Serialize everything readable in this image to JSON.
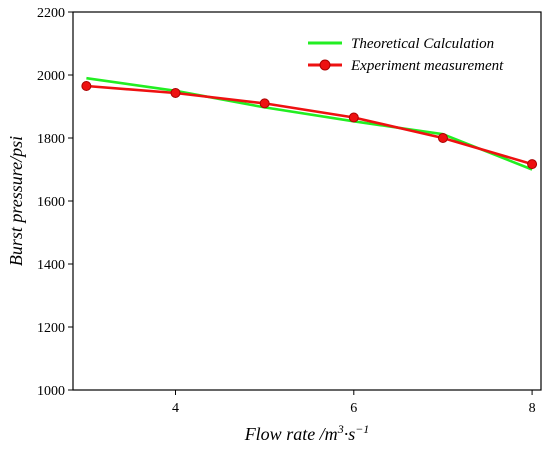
{
  "chart_data": {
    "type": "line",
    "xlabel_main": "Flow rate /m",
    "xlabel_sup1": "3",
    "xlabel_mid": "·s",
    "xlabel_sup2": "−1",
    "ylabel": "Burst pressure/psi",
    "xlim": [
      2.85,
      8.1
    ],
    "ylim": [
      1000,
      2200
    ],
    "xticks": [
      4,
      6,
      8
    ],
    "yticks": [
      1000,
      1200,
      1400,
      1600,
      1800,
      2000,
      2200
    ],
    "grid": false,
    "legend_position": "top-right",
    "series": [
      {
        "name": "Theoretical Calculation",
        "color": "#22ee22",
        "marker": "none",
        "x": [
          3,
          4,
          5,
          6,
          7,
          8
        ],
        "y": [
          1990,
          1950,
          1897,
          1853,
          1812,
          1700
        ]
      },
      {
        "name": "Experiment measurement",
        "color": "#ee1111",
        "marker": "circle",
        "x": [
          3,
          4,
          5,
          6,
          7,
          8
        ],
        "y": [
          1965,
          1943,
          1910,
          1865,
          1800,
          1717
        ]
      }
    ]
  }
}
